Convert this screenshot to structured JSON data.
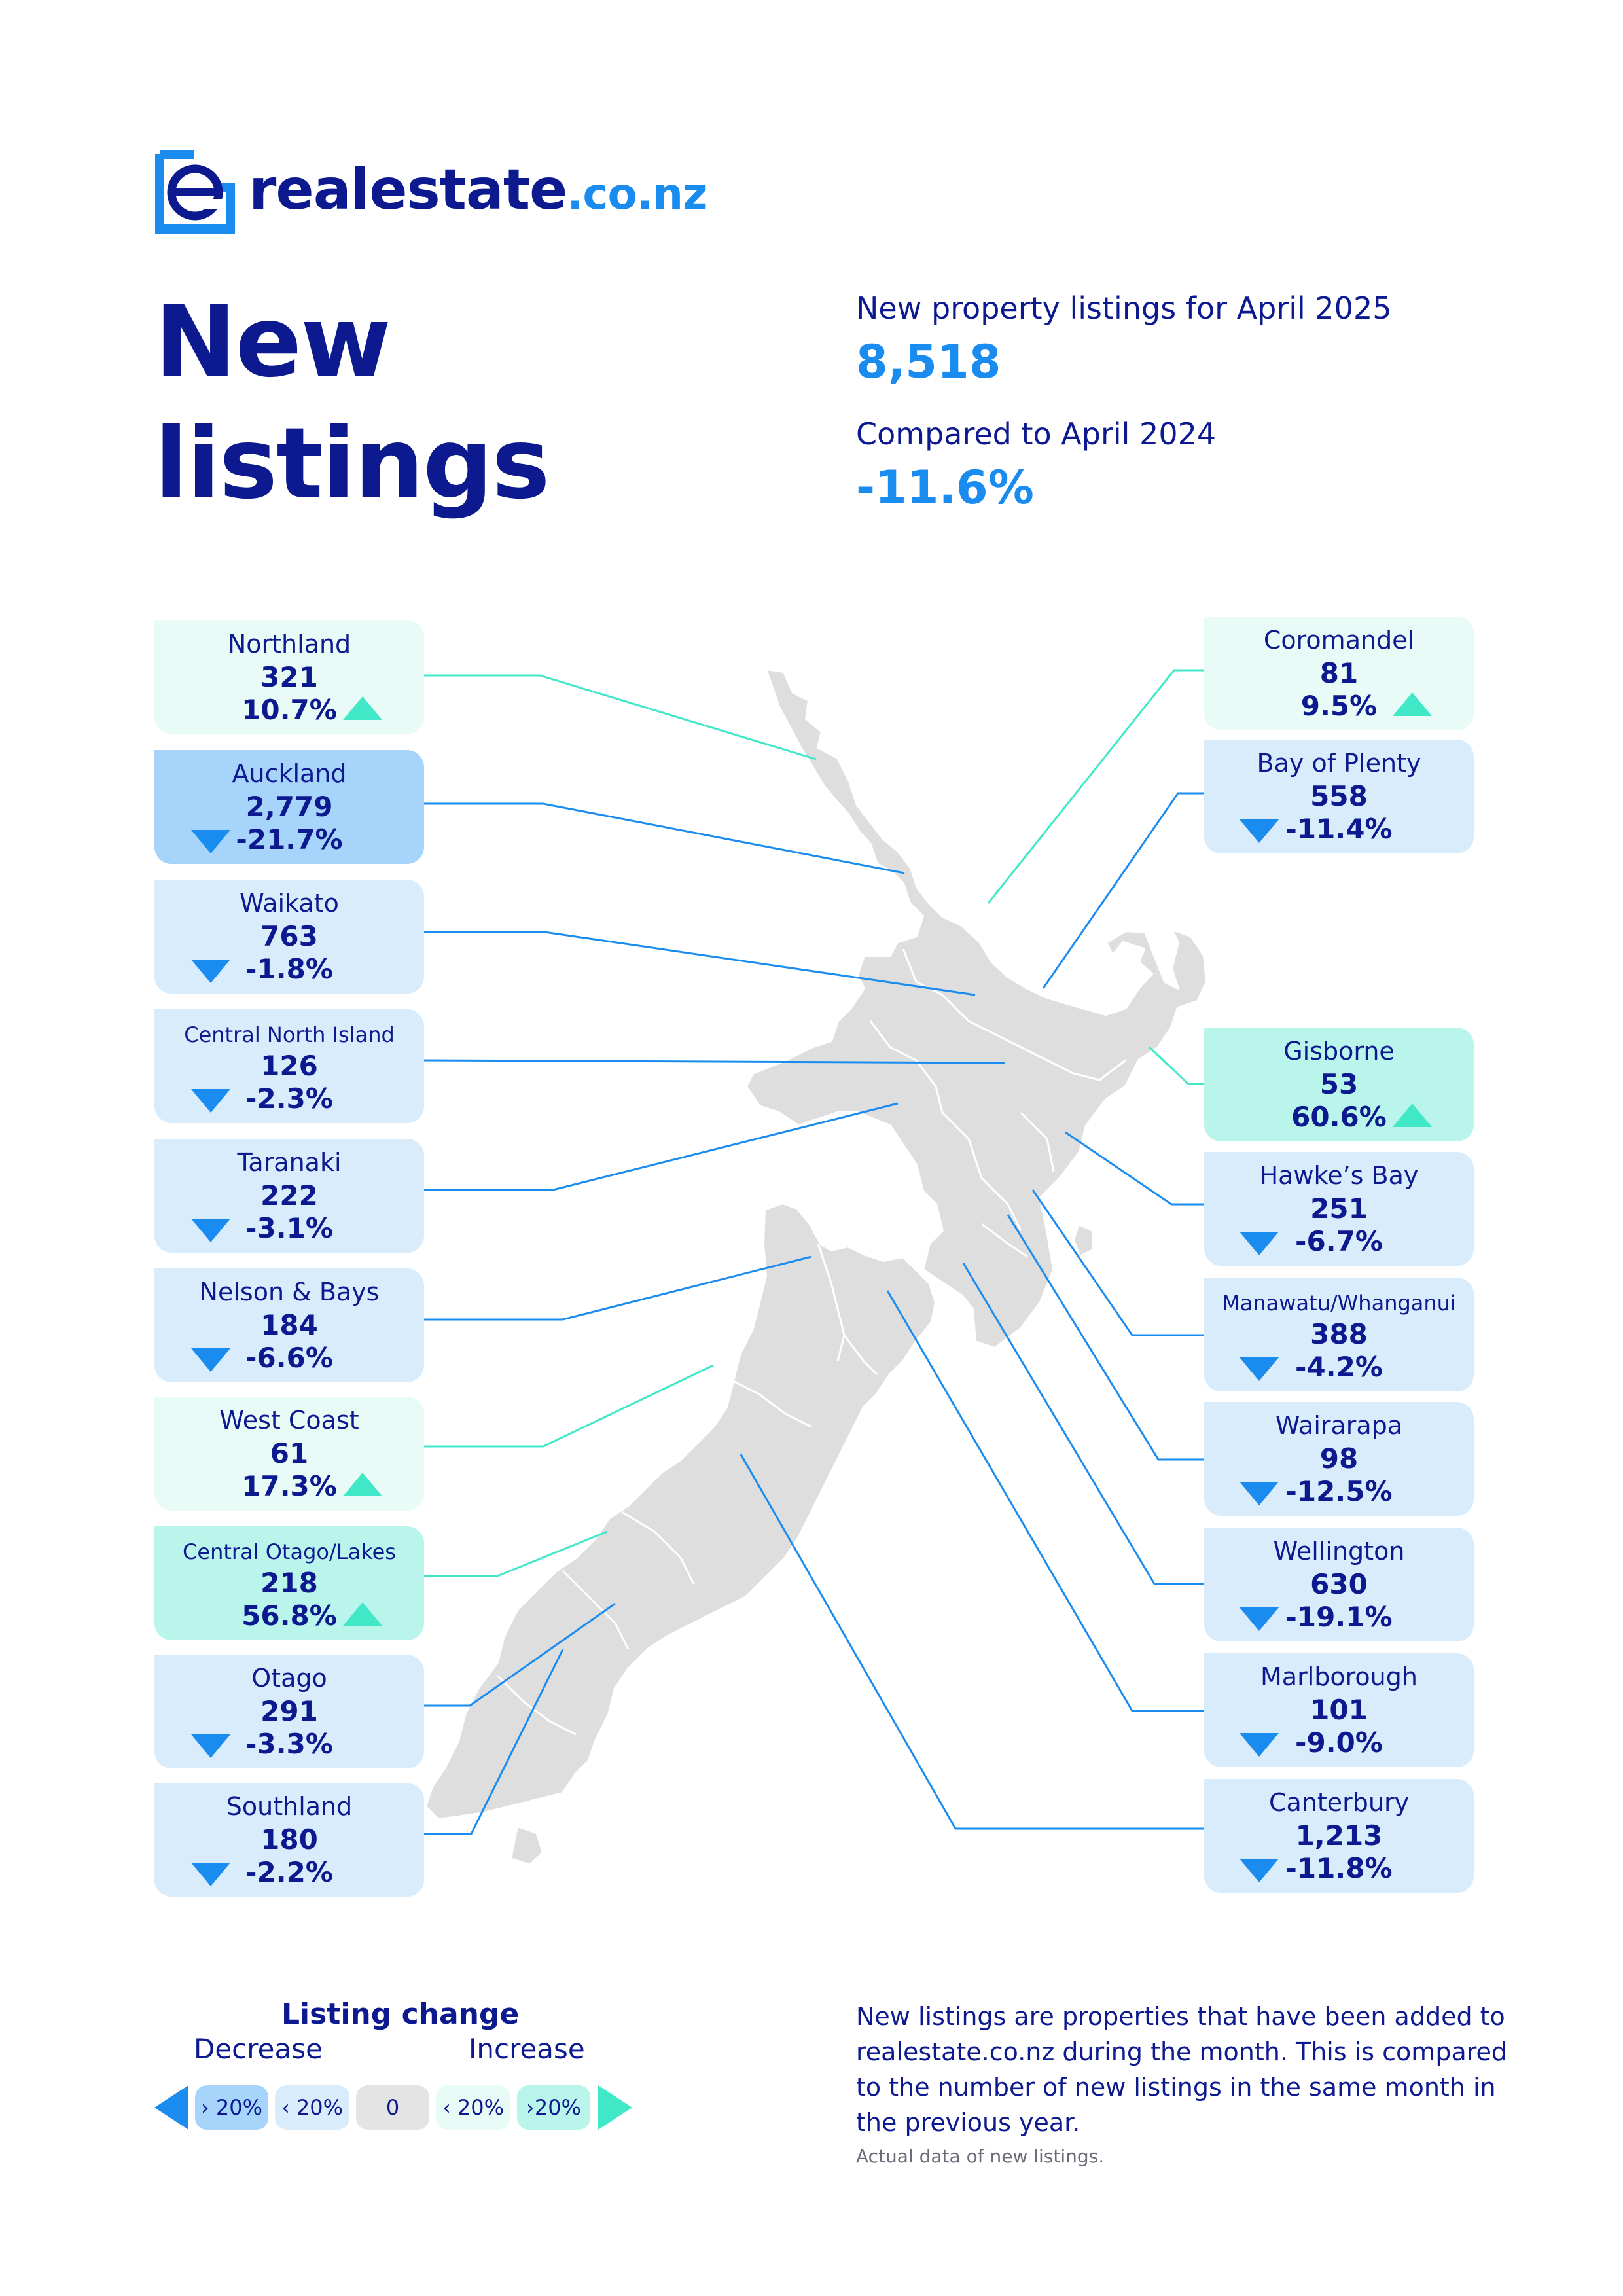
{
  "brand": {
    "name": "realestate",
    "tld": ".co.nz",
    "logo_letter": "e"
  },
  "title_line1": "New",
  "title_line2": "listings",
  "summary": {
    "label_current": "New property listings for April 2025",
    "value_current": "8,518",
    "label_compare": "Compared to April 2024",
    "value_compare": "-11.6%"
  },
  "colors": {
    "navy": "#0d1a8f",
    "blue": "#1a8cf0",
    "teal": "#40e8c8",
    "decrease_light": "#d9ecfb",
    "decrease_strong": "#a6d4fa",
    "increase_light": "#e9fbf6",
    "increase_strong": "#b9f5ea",
    "land": "#dedede"
  },
  "regions_left": [
    {
      "name": "Northland",
      "count": "321",
      "change": "10.7%",
      "trend": "increase",
      "band": "light"
    },
    {
      "name": "Auckland",
      "count": "2,779",
      "change": "-21.7%",
      "trend": "decrease",
      "band": "strong"
    },
    {
      "name": "Waikato",
      "count": "763",
      "change": "-1.8%",
      "trend": "decrease",
      "band": "light"
    },
    {
      "name": "Central North Island",
      "count": "126",
      "change": "-2.3%",
      "trend": "decrease",
      "band": "light"
    },
    {
      "name": "Taranaki",
      "count": "222",
      "change": "-3.1%",
      "trend": "decrease",
      "band": "light"
    },
    {
      "name": "Nelson & Bays",
      "count": "184",
      "change": "-6.6%",
      "trend": "decrease",
      "band": "light"
    },
    {
      "name": "West Coast",
      "count": "61",
      "change": "17.3%",
      "trend": "increase",
      "band": "light"
    },
    {
      "name": "Central Otago/Lakes",
      "count": "218",
      "change": "56.8%",
      "trend": "increase",
      "band": "strong"
    },
    {
      "name": "Otago",
      "count": "291",
      "change": "-3.3%",
      "trend": "decrease",
      "band": "light"
    },
    {
      "name": "Southland",
      "count": "180",
      "change": "-2.2%",
      "trend": "decrease",
      "band": "light"
    }
  ],
  "regions_right": [
    {
      "name": "Coromandel",
      "count": "81",
      "change": "9.5%",
      "trend": "increase",
      "band": "light"
    },
    {
      "name": "Bay of Plenty",
      "count": "558",
      "change": "-11.4%",
      "trend": "decrease",
      "band": "light"
    },
    {
      "name": "Gisborne",
      "count": "53",
      "change": "60.6%",
      "trend": "increase",
      "band": "strong"
    },
    {
      "name": "Hawke’s Bay",
      "count": "251",
      "change": "-6.7%",
      "trend": "decrease",
      "band": "light"
    },
    {
      "name": "Manawatu/Whanganui",
      "count": "388",
      "change": "-4.2%",
      "trend": "decrease",
      "band": "light"
    },
    {
      "name": "Wairarapa",
      "count": "98",
      "change": "-12.5%",
      "trend": "decrease",
      "band": "light"
    },
    {
      "name": "Wellington",
      "count": "630",
      "change": "-19.1%",
      "trend": "decrease",
      "band": "light"
    },
    {
      "name": "Marlborough",
      "count": "101",
      "change": "-9.0%",
      "trend": "decrease",
      "band": "light"
    },
    {
      "name": "Canterbury",
      "count": "1,213",
      "change": "-11.8%",
      "trend": "decrease",
      "band": "light"
    }
  ],
  "legend": {
    "title": "Listing change",
    "decrease_label": "Decrease",
    "increase_label": "Increase",
    "chips": [
      "› 20%",
      "‹ 20%",
      "0",
      "‹ 20%",
      "›20%"
    ]
  },
  "note": "New listings are properties that have been added to realestate.co.nz during the month. This is compared to the number of new listings in the same month in the previous year.",
  "note_small": "Actual data of new listings."
}
